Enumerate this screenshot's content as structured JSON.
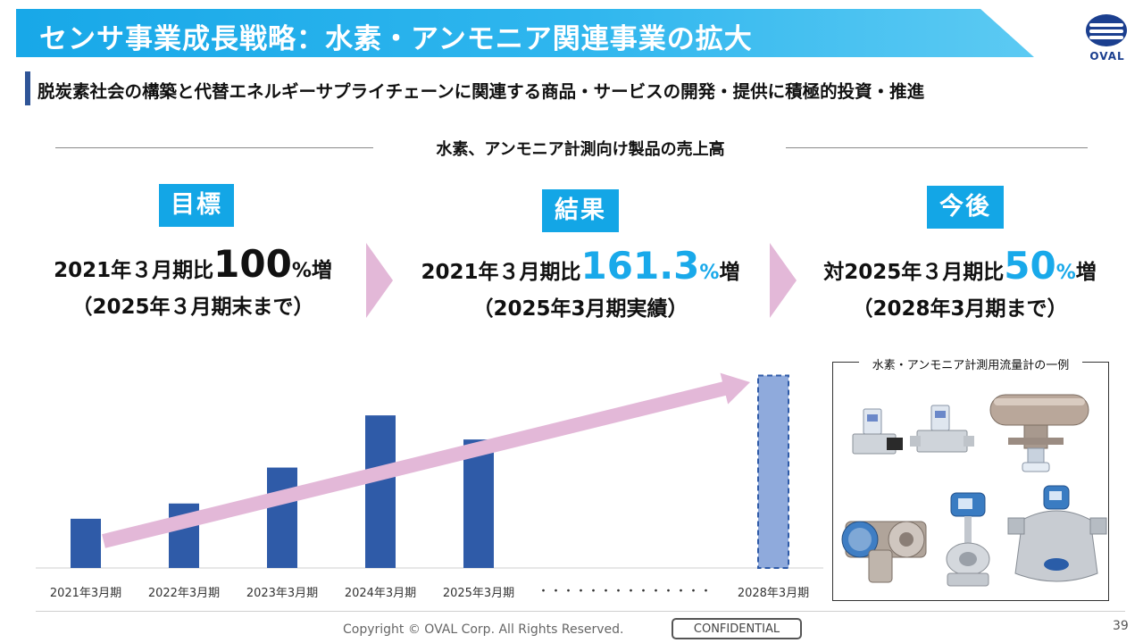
{
  "header": {
    "title": "センサ事業成長戦略：水素・アンモニア関連事業の拡大",
    "logo_text": "OVAL"
  },
  "subtitle": "脱炭素社会の構築と代替エネルギーサプライチェーンに関連する商品・サービスの開発・提供に積極的投資・推進",
  "section_title": "水素、アンモニア計測向け製品の売上高",
  "panels": {
    "target": {
      "label": "目標",
      "prefix": "2021年３月期比",
      "value": "100",
      "unit": "%",
      "suffix": "増",
      "note": "（2025年３月期末まで）"
    },
    "result": {
      "label": "結果",
      "prefix": "2021年３月期比",
      "value": "161.3",
      "unit": "%",
      "suffix": "増",
      "note": "（2025年3月期実績）"
    },
    "future": {
      "label": "今後",
      "prefix": "対2025年３月期比",
      "value": "50",
      "unit": "%",
      "suffix": "増",
      "note": "（2028年3月期まで）"
    }
  },
  "chart_data": {
    "type": "bar",
    "title": "水素、アンモニア計測向け製品の売上高",
    "categories": [
      "2021年3月期",
      "2022年3月期",
      "2023年3月期",
      "2024年3月期",
      "2025年3月期",
      "2028年3月期"
    ],
    "values": [
      100,
      131,
      204,
      310,
      261,
      391
    ],
    "projected": [
      false,
      false,
      false,
      false,
      false,
      true
    ],
    "gap_marker": "・・・・・・・・・・・・・・",
    "trend_arrow": true,
    "ylim": [
      0,
      410
    ],
    "grid": false,
    "colors": {
      "actual": "#2f5ba8",
      "projected": "#8faadc",
      "arrow": "#e3b8d8"
    }
  },
  "photo_panel": {
    "caption": "水素・アンモニア計測用流量計の一例",
    "items": [
      "mass-flow-controller-pair",
      "coriolis-flowmeter-horizontal",
      "blue-flowmeter-flanged",
      "vortex-flowmeter",
      "coriolis-flowmeter-oval"
    ]
  },
  "footer": {
    "copyright": "Copyright © OVAL Corp. All Rights Reserved.",
    "confidential": "CONFIDENTIAL",
    "page_number": "39"
  }
}
